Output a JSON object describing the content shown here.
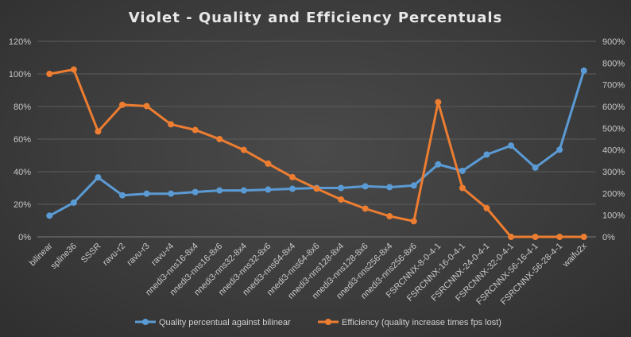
{
  "chart_data": {
    "type": "line",
    "title": "Violet  - Quality  and  Efficiency  Percentuals",
    "categories": [
      "bilinear",
      "spline36",
      "SSSR",
      "ravu-r2",
      "ravu-r3",
      "ravu-r4",
      "nnedi3-nns16-8x4",
      "nnedi3-nns16-8x6",
      "nnedi3-nns32-8x4",
      "nnedi3-nns32-8x6",
      "nnedi3-nns64-8x4",
      "nnedi3-nns64-8x6",
      "nnedi3-nns128-8x4",
      "nnedi3-nns128-8x6",
      "nnedi3-nns256-8x4",
      "nnedi3-nns256-8x6",
      "FSRCNNX-8-0-4-1",
      "FSRCNNX-16-0-4-1",
      "FSRCNNX-24-0-4-1",
      "FSRCNNX-32-0-4-1",
      "FSRCNNX-56-16-4-1",
      "FSRCNNX-56-28-4-1",
      "waifu2x"
    ],
    "y_left": {
      "ticks": [
        "0%",
        "20%",
        "40%",
        "60%",
        "80%",
        "100%",
        "120%"
      ],
      "ylim": [
        0,
        120
      ]
    },
    "y_right": {
      "ticks": [
        "0%",
        "100%",
        "200%",
        "300%",
        "400%",
        "500%",
        "600%",
        "700%",
        "800%",
        "900%"
      ],
      "ylim": [
        0,
        900
      ]
    },
    "series": [
      {
        "name": "Quality percentual against bilinear",
        "axis": "left",
        "color": "#5b9bd5",
        "values": [
          13,
          21,
          36.5,
          25.5,
          26.5,
          26.5,
          27.5,
          28.5,
          28.5,
          29,
          29.5,
          30,
          30,
          31,
          30.5,
          31.5,
          44.5,
          40.5,
          50.5,
          56,
          42.5,
          53.5,
          102
        ]
      },
      {
        "name": "Efficiency (quality increase times fps lost)",
        "axis": "right",
        "color": "#ed7d31",
        "values": [
          750,
          770,
          485,
          608,
          602,
          518,
          492,
          450,
          400,
          337,
          275,
          222,
          172,
          130,
          95,
          72,
          620,
          225,
          132,
          0,
          0,
          0,
          0
        ]
      }
    ],
    "grid": true,
    "legend_position": "bottom"
  }
}
